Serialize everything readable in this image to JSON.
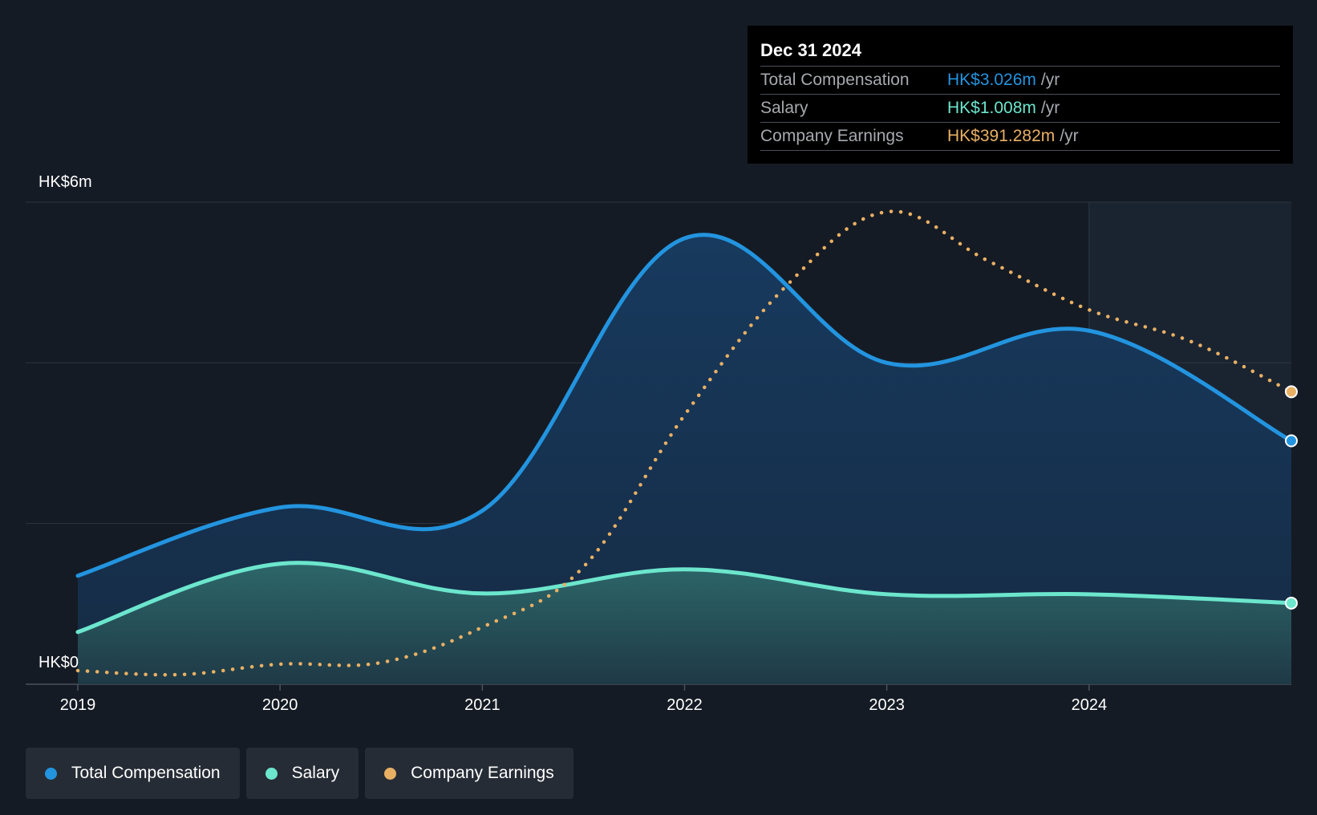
{
  "tooltip": {
    "date": "Dec 31 2024",
    "rows": [
      {
        "label": "Total Compensation",
        "value": "HK$3.026m",
        "unit": "/yr",
        "color": "#2394df"
      },
      {
        "label": "Salary",
        "value": "HK$1.008m",
        "unit": "/yr",
        "color": "#6ce6cd"
      },
      {
        "label": "Company Earnings",
        "value": "HK$391.282m",
        "unit": "/yr",
        "color": "#e9b064"
      }
    ]
  },
  "legend": [
    {
      "label": "Total Compensation",
      "color": "#2394df"
    },
    {
      "label": "Salary",
      "color": "#6ce6cd"
    },
    {
      "label": "Company Earnings",
      "color": "#e9b064"
    }
  ],
  "chart_data": {
    "type": "area",
    "y_top_label": "HK$6m",
    "y_bottom_label": "HK$0",
    "ylim": [
      0,
      6
    ],
    "xlim": [
      2019,
      2025
    ],
    "x_ticks": [
      "2019",
      "2020",
      "2021",
      "2022",
      "2023",
      "2024"
    ],
    "grid": true,
    "highlight_start": 2024,
    "series": [
      {
        "name": "Total Compensation",
        "color": "#2394df",
        "kind": "area",
        "x": [
          2019.0,
          2020.0,
          2021.0,
          2022.0,
          2023.0,
          2024.0,
          2025.0
        ],
        "y": [
          1.35,
          2.2,
          2.16,
          5.55,
          4.0,
          4.4,
          3.03
        ]
      },
      {
        "name": "Salary",
        "color": "#6ce6cd",
        "kind": "area",
        "x": [
          2019.0,
          2020.0,
          2021.0,
          2022.0,
          2023.0,
          2024.0,
          2025.0
        ],
        "y": [
          0.65,
          1.5,
          1.13,
          1.43,
          1.12,
          1.12,
          1.01
        ]
      },
      {
        "name": "Company Earnings",
        "color": "#e9b064",
        "kind": "dotted",
        "axis": "secondary",
        "x": [
          2019.0,
          2019.5,
          2020.0,
          2020.5,
          2021.0,
          2021.5,
          2022.0,
          2022.5,
          2023.0,
          2023.5,
          2024.0,
          2024.5,
          2025.0
        ],
        "y": [
          0.17,
          0.12,
          0.25,
          0.27,
          0.71,
          1.46,
          3.35,
          4.95,
          5.88,
          5.27,
          4.66,
          4.27,
          3.64
        ]
      }
    ]
  }
}
